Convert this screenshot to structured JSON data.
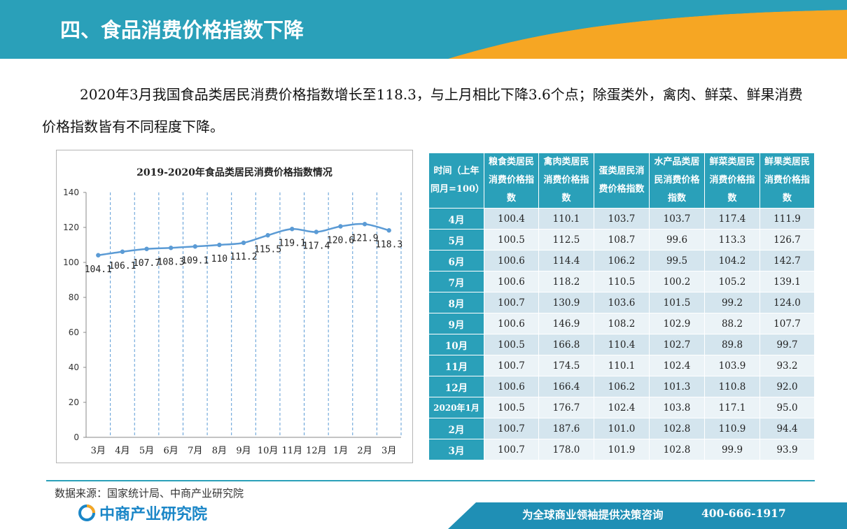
{
  "header": {
    "title": "四、食品消费价格指数下降"
  },
  "intro": "2020年3月我国食品类居民消费价格指数增长至118.3，与上月相比下降3.6个点；除蛋类外，禽肉、鲜菜、鲜果消费价格指数皆有不同程度下降。",
  "colors": {
    "accent_blue": "#2aa0b9",
    "header_orange": "#f6a623",
    "line_blue": "#5b9bd5"
  },
  "chart_data": {
    "type": "line",
    "title": "2019-2020年食品类居民消费价格指数情况",
    "categories": [
      "3月",
      "4月",
      "5月",
      "6月",
      "7月",
      "8月",
      "9月",
      "10月",
      "11月",
      "12月",
      "1月",
      "2月",
      "3月"
    ],
    "values": [
      104.1,
      106.1,
      107.7,
      108.3,
      109.1,
      110,
      111.2,
      115.5,
      119.1,
      117.4,
      120.6,
      121.9,
      118.3
    ],
    "value_labels": [
      "104.1",
      "106.1",
      "107.7",
      "108.3",
      "109.1",
      "110",
      "111.2",
      "115.5",
      "119.1",
      "117.4",
      "120.6",
      "121.9",
      "118.3"
    ],
    "ylim": [
      0,
      140
    ],
    "yticks": [
      "0",
      "20",
      "40",
      "60",
      "80",
      "100",
      "120",
      "140"
    ],
    "xlabel": "",
    "ylabel": "",
    "grid": "vertical dashed",
    "legend": "none"
  },
  "table": {
    "headers": [
      "时间（上年同月=100）",
      "粮食类居民消费价格指数",
      "禽肉类居民消费价格指数",
      "蛋类居民消费价格指数",
      "水产品类居民消费价格指数",
      "鲜菜类居民消费价格指数",
      "鲜果类居民消费价格指数"
    ],
    "rows": [
      [
        "4月",
        "100.4",
        "110.1",
        "103.7",
        "103.7",
        "117.4",
        "111.9"
      ],
      [
        "5月",
        "100.5",
        "112.5",
        "108.7",
        "99.6",
        "113.3",
        "126.7"
      ],
      [
        "6月",
        "100.6",
        "114.4",
        "106.2",
        "99.5",
        "104.2",
        "142.7"
      ],
      [
        "7月",
        "100.6",
        "118.2",
        "110.5",
        "100.2",
        "105.2",
        "139.1"
      ],
      [
        "8月",
        "100.7",
        "130.9",
        "103.6",
        "101.5",
        "99.2",
        "124.0"
      ],
      [
        "9月",
        "100.6",
        "146.9",
        "108.2",
        "102.9",
        "88.2",
        "107.7"
      ],
      [
        "10月",
        "100.5",
        "166.8",
        "110.4",
        "102.7",
        "89.8",
        "99.7"
      ],
      [
        "11月",
        "100.7",
        "174.5",
        "110.1",
        "102.4",
        "103.9",
        "93.2"
      ],
      [
        "12月",
        "100.6",
        "166.4",
        "106.2",
        "101.3",
        "110.8",
        "92.0"
      ],
      [
        "2020年1月",
        "100.5",
        "176.7",
        "102.4",
        "103.8",
        "117.1",
        "95.0"
      ],
      [
        "2月",
        "100.7",
        "187.6",
        "101.0",
        "102.8",
        "110.9",
        "94.4"
      ],
      [
        "3月",
        "100.7",
        "178.0",
        "101.9",
        "102.8",
        "99.9",
        "93.9"
      ]
    ]
  },
  "footer": {
    "source": "数据来源：国家统计局、中商产业研究院",
    "logo_text": "中商产业研究院",
    "slogan": "为全球商业领袖提供决策咨询",
    "phone": "400-666-1917"
  }
}
